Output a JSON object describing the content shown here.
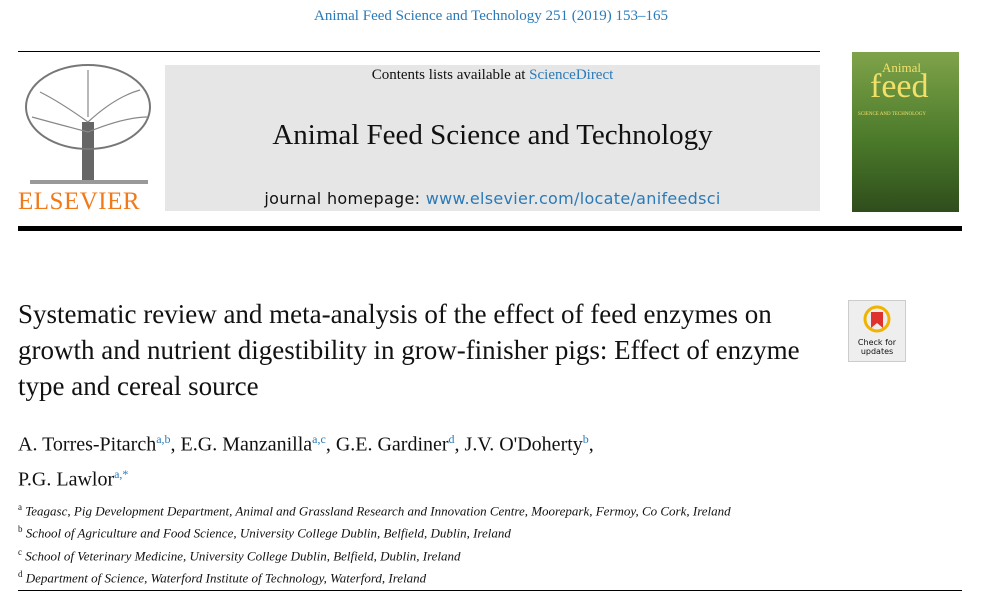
{
  "header": {
    "citation": "Animal Feed Science and Technology 251 (2019) 153–165"
  },
  "publisher": "ELSEVIER",
  "banner": {
    "contents_prefix": "Contents lists available at",
    "contents_link": "ScienceDirect",
    "journal": "Animal Feed Science and Technology",
    "homepage_prefix": "journal homepage:",
    "homepage_url": "www.elsevier.com/locate/anifeedsci"
  },
  "cover": {
    "title1": "Animal",
    "title2": "feed",
    "subtitle": "SCIENCE AND TECHNOLOGY"
  },
  "badge": {
    "line1": "Check for",
    "line2": "updates"
  },
  "article": {
    "title": "Systematic review and meta-analysis of the effect of feed enzymes on growth and nutrient digestibility in grow-finisher pigs: Effect of enzyme type and cereal source",
    "authors": [
      {
        "name": "A. Torres-Pitarch",
        "affil": "a,b",
        "sep": ","
      },
      {
        "name": "E.G. Manzanilla",
        "affil": "a,c",
        "sep": ","
      },
      {
        "name": "G.E. Gardiner",
        "affil": "d",
        "sep": ","
      },
      {
        "name": "J.V. O'Doherty",
        "affil": "b",
        "sep": ","
      },
      {
        "name": "P.G. Lawlor",
        "affil": "a,*"
      }
    ],
    "affiliations": [
      {
        "mark": "a",
        "text": "Teagasc, Pig Development Department, Animal and Grassland Research and Innovation Centre, Moorepark, Fermoy, Co Cork, Ireland"
      },
      {
        "mark": "b",
        "text": "School of Agriculture and Food Science, University College Dublin, Belfield, Dublin, Ireland"
      },
      {
        "mark": "c",
        "text": "School of Veterinary Medicine, University College Dublin, Belfield, Dublin, Ireland"
      },
      {
        "mark": "d",
        "text": "Department of Science, Waterford Institute of Technology, Waterford, Ireland"
      }
    ]
  }
}
